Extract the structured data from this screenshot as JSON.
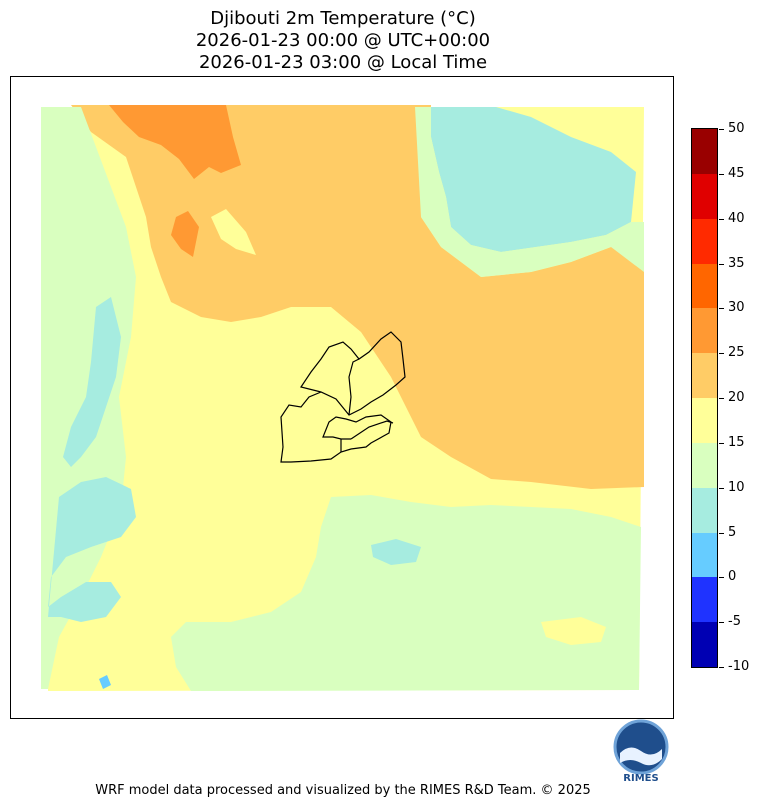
{
  "title": {
    "line1": "Djibouti 2m Temperature (°C)",
    "line2": "2026-01-23 00:00 @ UTC+00:00",
    "line3": "2026-01-23 03:00 @ Local Time"
  },
  "colorbar": {
    "ticks": [
      "50",
      "45",
      "40",
      "35",
      "30",
      "25",
      "20",
      "15",
      "10",
      "5",
      "0",
      "-5",
      "-10"
    ],
    "bins": [
      {
        "from": 45,
        "to": 50,
        "color": "#990000"
      },
      {
        "from": 40,
        "to": 45,
        "color": "#e00000"
      },
      {
        "from": 35,
        "to": 40,
        "color": "#ff2a00"
      },
      {
        "from": 30,
        "to": 35,
        "color": "#ff6600"
      },
      {
        "from": 25,
        "to": 30,
        "color": "#ff9933"
      },
      {
        "from": 20,
        "to": 25,
        "color": "#ffcc66"
      },
      {
        "from": 15,
        "to": 20,
        "color": "#ffff99"
      },
      {
        "from": 10,
        "to": 15,
        "color": "#d9ffbf"
      },
      {
        "from": 5,
        "to": 10,
        "color": "#a6ece0"
      },
      {
        "from": 0,
        "to": 5,
        "color": "#66ccff"
      },
      {
        "from": -5,
        "to": 0,
        "color": "#1f33ff"
      },
      {
        "from": -10,
        "to": -5,
        "color": "#0000b3"
      }
    ]
  },
  "logo": {
    "text": "RIMES"
  },
  "footer": "WRF model data processed and visualized by the RIMES R&D Team. © 2025"
}
